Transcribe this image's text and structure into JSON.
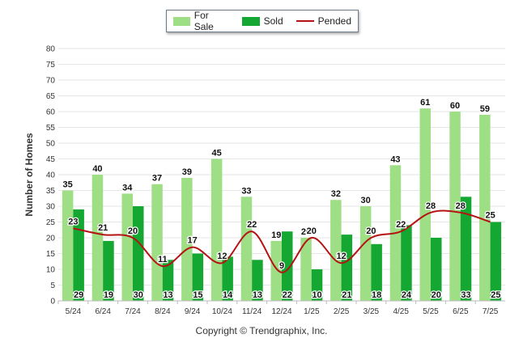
{
  "chart_data": {
    "type": "bar",
    "ylabel": "Number of Homes",
    "ylim": [
      0,
      80
    ],
    "yticks": [
      0,
      5,
      10,
      15,
      20,
      25,
      30,
      35,
      40,
      45,
      50,
      55,
      60,
      65,
      70,
      75,
      80
    ],
    "grid": true,
    "legend_position": "top-center",
    "categories": [
      "5/24",
      "6/24",
      "7/24",
      "8/24",
      "9/24",
      "10/24",
      "11/24",
      "12/24",
      "1/25",
      "2/25",
      "3/25",
      "4/25",
      "5/25",
      "6/25",
      "7/25"
    ],
    "series": [
      {
        "name": "For Sale",
        "type": "bar",
        "color": "#9ede85",
        "values": [
          35,
          40,
          34,
          37,
          39,
          45,
          33,
          19,
          20,
          32,
          30,
          43,
          61,
          60,
          59
        ]
      },
      {
        "name": "Sold",
        "type": "bar",
        "color": "#14a832",
        "values": [
          29,
          19,
          30,
          13,
          15,
          14,
          13,
          22,
          10,
          21,
          18,
          24,
          20,
          33,
          25
        ]
      },
      {
        "name": "Pended",
        "type": "line",
        "color": "#b51313",
        "values": [
          23,
          21,
          20,
          11,
          17,
          12,
          22,
          9,
          20,
          12,
          20,
          22,
          28,
          28,
          25
        ]
      }
    ]
  },
  "footer": {
    "copyright": "Copyright © Trendgraphix, Inc."
  }
}
